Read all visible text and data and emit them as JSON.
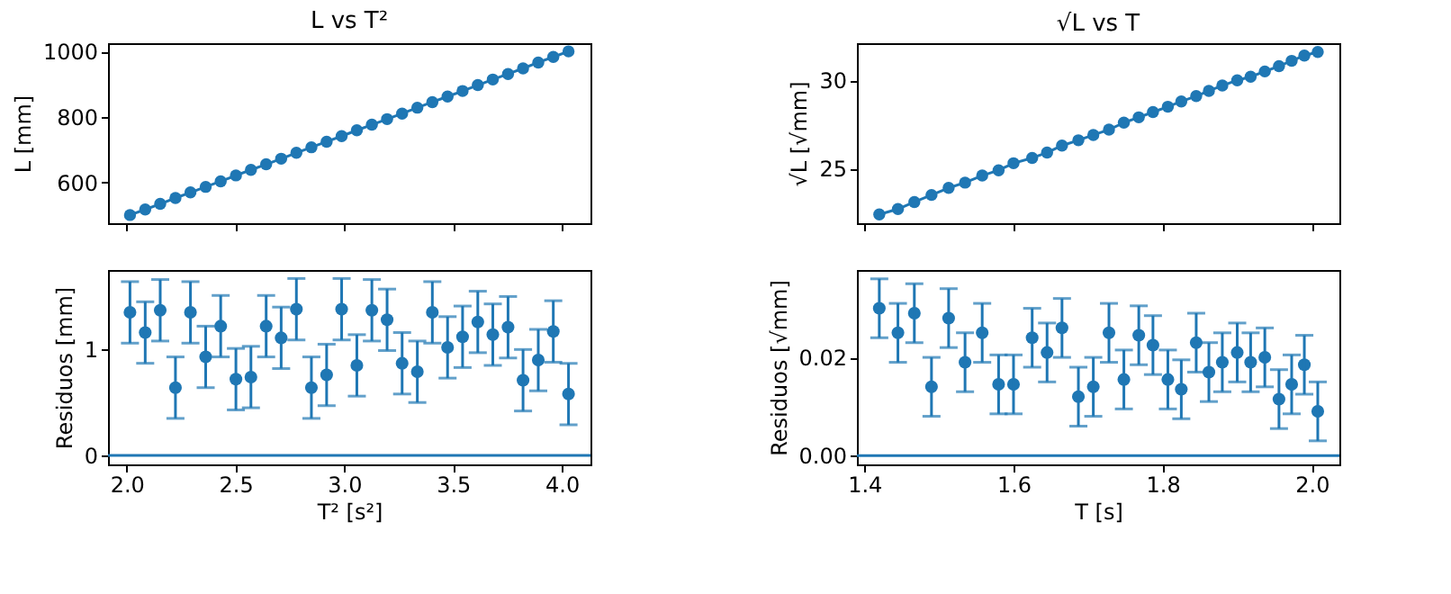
{
  "chart_data": [
    {
      "type": "line",
      "title": "L vs T²",
      "ylabel": "L [mm]",
      "marker": "circle",
      "grid": false,
      "tick_labels": "y",
      "x": [
        2.015,
        2.085,
        2.154,
        2.224,
        2.293,
        2.363,
        2.432,
        2.502,
        2.571,
        2.641,
        2.71,
        2.78,
        2.849,
        2.919,
        2.988,
        3.058,
        3.127,
        3.197,
        3.266,
        3.336,
        3.405,
        3.475,
        3.544,
        3.614,
        3.683,
        3.753,
        3.822,
        3.892,
        3.961,
        4.031
      ],
      "series": [
        {
          "color": "#1f77b4",
          "values": [
            500,
            517,
            534,
            552,
            569,
            586,
            603,
            621,
            638,
            655,
            672,
            690,
            707,
            724,
            741,
            759,
            776,
            793,
            810,
            828,
            845,
            862,
            879,
            897,
            914,
            931,
            948,
            966,
            983,
            1000
          ]
        }
      ],
      "xlim": [
        1.914,
        4.132
      ],
      "xticks": [
        {
          "value": 2,
          "label": null
        },
        {
          "value": 2.5,
          "label": null
        },
        {
          "value": 3,
          "label": null
        },
        {
          "value": 3.5,
          "label": null
        },
        {
          "value": 4,
          "label": null
        }
      ],
      "ylim": [
        475,
        1025
      ],
      "yticks": [
        600,
        800,
        1000
      ]
    },
    {
      "type": "line",
      "title": "√L vs T",
      "ylabel": "√L [√mm]",
      "marker": "circle",
      "grid": false,
      "tick_labels": "y",
      "x": [
        1.42,
        1.445,
        1.467,
        1.49,
        1.513,
        1.535,
        1.558,
        1.58,
        1.6,
        1.625,
        1.645,
        1.665,
        1.687,
        1.707,
        1.728,
        1.748,
        1.768,
        1.787,
        1.807,
        1.825,
        1.845,
        1.862,
        1.88,
        1.9,
        1.918,
        1.937,
        1.956,
        1.973,
        1.99,
        2.008
      ],
      "series": [
        {
          "color": "#1f77b4",
          "values": [
            22.4,
            22.7,
            23.1,
            23.5,
            23.9,
            24.2,
            24.6,
            24.9,
            25.3,
            25.6,
            25.9,
            26.3,
            26.6,
            26.9,
            27.2,
            27.6,
            27.9,
            28.2,
            28.5,
            28.8,
            29.1,
            29.4,
            29.7,
            30.0,
            30.2,
            30.5,
            30.8,
            31.1,
            31.4,
            31.6
          ]
        }
      ],
      "xlim": [
        1.39,
        2.037
      ],
      "xticks": [
        {
          "value": 1.4,
          "label": null
        },
        {
          "value": 1.6,
          "label": null
        },
        {
          "value": 1.8,
          "label": null
        },
        {
          "value": 2,
          "label": null
        }
      ],
      "ylim": [
        21.9,
        32.1
      ],
      "yticks": [
        25,
        30
      ]
    },
    {
      "type": "scatter",
      "xlabel": "T² [s²]",
      "ylabel": "Residuos [mm]",
      "marker": "circle",
      "grid": false,
      "x": [
        2.015,
        2.085,
        2.154,
        2.224,
        2.293,
        2.363,
        2.432,
        2.502,
        2.571,
        2.641,
        2.71,
        2.78,
        2.849,
        2.919,
        2.988,
        3.058,
        3.127,
        3.197,
        3.266,
        3.336,
        3.405,
        3.475,
        3.544,
        3.614,
        3.683,
        3.753,
        3.822,
        3.892,
        3.961,
        4.031
      ],
      "series": [
        {
          "color": "#1f77b4",
          "values": [
            1.35,
            1.16,
            1.37,
            0.64,
            1.35,
            0.93,
            1.22,
            0.72,
            0.74,
            1.22,
            1.11,
            1.38,
            0.64,
            0.76,
            1.38,
            0.85,
            1.37,
            1.28,
            0.87,
            0.79,
            1.35,
            1.02,
            1.12,
            1.26,
            1.14,
            1.21,
            0.71,
            0.9,
            1.17,
            0.58
          ],
          "errors": [
            0.29,
            0.29,
            0.29,
            0.29,
            0.29,
            0.29,
            0.29,
            0.29,
            0.29,
            0.29,
            0.29,
            0.29,
            0.29,
            0.29,
            0.29,
            0.29,
            0.29,
            0.29,
            0.29,
            0.29,
            0.29,
            0.29,
            0.29,
            0.29,
            0.29,
            0.29,
            0.29,
            0.29,
            0.29,
            0.29
          ]
        }
      ],
      "ref_lines": [
        {
          "axis": "y",
          "value": 0,
          "color": "#1f77b4"
        }
      ],
      "xlim": [
        1.914,
        4.132
      ],
      "xticks": [
        {
          "value": 2,
          "label": "2.0"
        },
        2.5,
        {
          "value": 3,
          "label": "3.0"
        },
        3.5,
        {
          "value": 4,
          "label": "4.0"
        }
      ],
      "ylim": [
        -0.084,
        1.75
      ],
      "yticks": [
        0,
        1
      ]
    },
    {
      "type": "scatter",
      "xlabel": "T [s]",
      "ylabel": "Residuos [√mm]",
      "marker": "circle",
      "grid": false,
      "x": [
        1.42,
        1.445,
        1.467,
        1.49,
        1.513,
        1.535,
        1.558,
        1.58,
        1.6,
        1.625,
        1.645,
        1.665,
        1.687,
        1.707,
        1.728,
        1.748,
        1.768,
        1.787,
        1.807,
        1.825,
        1.845,
        1.862,
        1.88,
        1.9,
        1.918,
        1.937,
        1.956,
        1.973,
        1.99,
        2.008
      ],
      "series": [
        {
          "color": "#1f77b4",
          "values": [
            0.03,
            0.025,
            0.029,
            0.014,
            0.028,
            0.019,
            0.025,
            0.0145,
            0.0145,
            0.024,
            0.021,
            0.026,
            0.012,
            0.014,
            0.025,
            0.0155,
            0.0245,
            0.0225,
            0.0155,
            0.0135,
            0.023,
            0.017,
            0.019,
            0.021,
            0.019,
            0.02,
            0.0115,
            0.0145,
            0.0185,
            0.009
          ],
          "errors": [
            0.006,
            0.006,
            0.006,
            0.006,
            0.006,
            0.006,
            0.006,
            0.006,
            0.006,
            0.006,
            0.006,
            0.006,
            0.006,
            0.006,
            0.006,
            0.006,
            0.006,
            0.006,
            0.006,
            0.006,
            0.006,
            0.006,
            0.006,
            0.006,
            0.006,
            0.006,
            0.006,
            0.006,
            0.006,
            0.006
          ]
        }
      ],
      "ref_lines": [
        {
          "axis": "y",
          "value": 0,
          "color": "#1f77b4"
        }
      ],
      "xlim": [
        1.39,
        2.037
      ],
      "xticks": [
        1.4,
        1.6,
        1.8,
        {
          "value": 2,
          "label": "2.0"
        }
      ],
      "ylim": [
        -0.0018,
        0.0378
      ],
      "yticks": [
        {
          "value": 0,
          "label": "0.00"
        },
        {
          "value": 0.02,
          "label": "0.02"
        }
      ]
    }
  ]
}
